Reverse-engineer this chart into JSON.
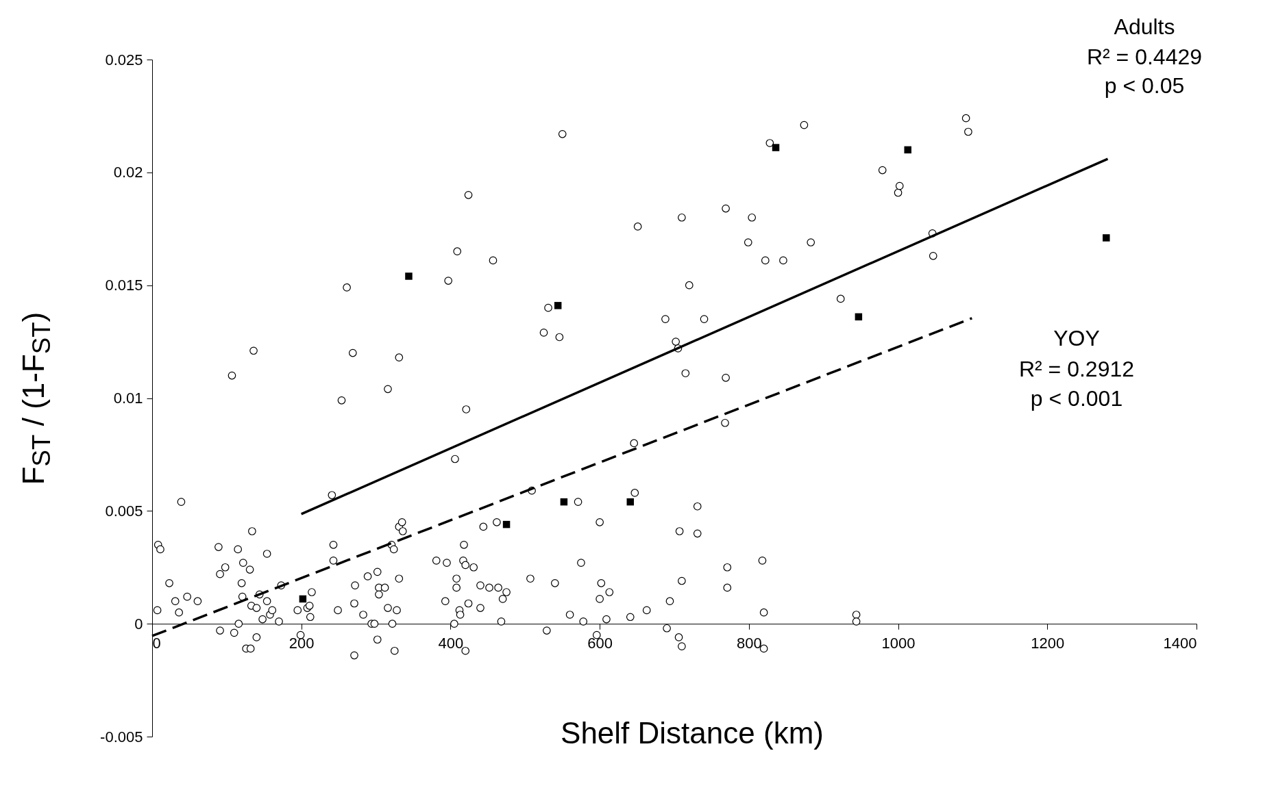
{
  "chart_data": {
    "type": "scatter",
    "xlabel": "Shelf Distance (km)",
    "ylabel": "F$_{ST}$ / (1-F$_{ST}$)",
    "annotations": [
      "Adults",
      "R² = 0.4429",
      "p < 0.05",
      "YOY",
      "R² = 0.2912",
      "p < 0.001"
    ],
    "xlim": [
      0,
      1400
    ],
    "xticks": [
      0,
      200,
      400,
      600,
      800,
      1000,
      1200,
      1400
    ],
    "ylim": [
      -0.005,
      0.025
    ],
    "yticks": [
      -0.005,
      0,
      0.005,
      0.01,
      0.015,
      0.02,
      0.025
    ],
    "grid": false,
    "series": [
      {
        "marker": "circle",
        "color": "#000000",
        "x": [
          8,
          11,
          7,
          23,
          31,
          36,
          39,
          47,
          61,
          89,
          91,
          98,
          91,
          107,
          110,
          115,
          116,
          120,
          122,
          121,
          126,
          131,
          132,
          134,
          133,
          136,
          140,
          140,
          144,
          148,
          154,
          154,
          158,
          161,
          170,
          173,
          195,
          199,
          208,
          211,
          212,
          214,
          241,
          243,
          243,
          249,
          254,
          261,
          269,
          272,
          271,
          271,
          283,
          289,
          294,
          298,
          302,
          302,
          304,
          304,
          312,
          316,
          316,
          321,
          324,
          322,
          325,
          331,
          331,
          328,
          331,
          335,
          336,
          381,
          395,
          393,
          397,
          406,
          409,
          405,
          408,
          408,
          412,
          413,
          417,
          418,
          420,
          420,
          421,
          424,
          424,
          431,
          440,
          440,
          444,
          452,
          457,
          462,
          464,
          468,
          470,
          475,
          507,
          509,
          525,
          529,
          531,
          540,
          546,
          550,
          560,
          571,
          575,
          578,
          596,
          600,
          602,
          600,
          609,
          613,
          646,
          647,
          651,
          641,
          663,
          688,
          690,
          694,
          702,
          705,
          707,
          706,
          710,
          710,
          710,
          715,
          720,
          731,
          731,
          740,
          768,
          769,
          769,
          771,
          771,
          799,
          804,
          818,
          820,
          820,
          822,
          828,
          846,
          874,
          883,
          923,
          944,
          944,
          979,
          1000,
          1002,
          1046,
          1047,
          1091,
          1094
        ],
        "values": [
          0.0035,
          0.0033,
          0.0006,
          0.0018,
          0.001,
          0.0005,
          0.0054,
          0.0012,
          0.001,
          0.0034,
          0.0022,
          0.0025,
          -0.0003,
          0.011,
          -0.0004,
          0.0033,
          0.0,
          0.0018,
          0.0027,
          0.0012,
          -0.0011,
          0.0024,
          -0.0011,
          0.0041,
          0.0008,
          0.0121,
          0.0007,
          -0.0006,
          0.0013,
          0.0002,
          0.001,
          0.0031,
          0.0004,
          0.0006,
          0.0001,
          0.0017,
          0.0006,
          -0.0005,
          0.0007,
          0.0008,
          0.0003,
          0.0014,
          0.0057,
          0.0035,
          0.0028,
          0.0006,
          0.0099,
          0.0149,
          0.012,
          0.0017,
          0.0009,
          -0.0014,
          0.0004,
          0.0021,
          0.0,
          0.0,
          0.0023,
          -0.0007,
          0.0016,
          0.0013,
          0.0016,
          0.0104,
          0.0007,
          0.0035,
          0.0033,
          0.0,
          -0.0012,
          0.0118,
          0.002,
          0.0006,
          0.0043,
          0.0045,
          0.0041,
          0.0028,
          0.0027,
          0.001,
          0.0152,
          0.0073,
          0.0165,
          0.0,
          0.002,
          0.0016,
          0.0006,
          0.0004,
          0.0028,
          0.0035,
          -0.0012,
          0.0026,
          0.0095,
          0.019,
          0.0009,
          0.0025,
          0.0017,
          0.0007,
          0.0043,
          0.0016,
          0.0161,
          0.0045,
          0.0016,
          0.0001,
          0.0011,
          0.0014,
          0.002,
          0.0059,
          0.0129,
          -0.0003,
          0.014,
          0.0018,
          0.0127,
          0.0217,
          0.0004,
          0.0054,
          0.0027,
          0.0001,
          -0.0005,
          0.0045,
          0.0018,
          0.0011,
          0.0002,
          0.0014,
          0.008,
          0.0058,
          0.0176,
          0.0003,
          0.0006,
          0.0135,
          -0.0002,
          0.001,
          0.0125,
          0.0122,
          0.0041,
          -0.0006,
          -0.001,
          0.0019,
          0.018,
          0.0111,
          0.015,
          0.0052,
          0.004,
          0.0135,
          0.0089,
          0.0109,
          0.0184,
          0.0025,
          0.0016,
          0.0169,
          0.018,
          0.0028,
          0.0005,
          -0.0011,
          0.0161,
          0.0213,
          0.0161,
          0.0221,
          0.0169,
          0.0144,
          0.0004,
          0.0001,
          0.0201,
          0.0191,
          0.0194,
          0.0173,
          0.0163,
          0.0224,
          0.0218
        ]
      },
      {
        "marker": "square",
        "color": "#000000",
        "x": [
          202,
          344,
          475,
          544,
          552,
          641,
          836,
          947,
          1013,
          1279
        ],
        "values": [
          0.0011,
          0.0154,
          0.0044,
          0.0141,
          0.0054,
          0.0054,
          0.0211,
          0.0136,
          0.021,
          0.0171
        ]
      },
      {
        "type": "line",
        "line_style": "solid",
        "color": "#000000",
        "x": [
          200,
          1281
        ],
        "values": [
          0.00486,
          0.0206
        ]
      },
      {
        "type": "line",
        "line_style": "dashed",
        "color": "#000000",
        "x": [
          0,
          1099
        ],
        "values": [
          -0.00054,
          0.01354
        ]
      }
    ]
  }
}
